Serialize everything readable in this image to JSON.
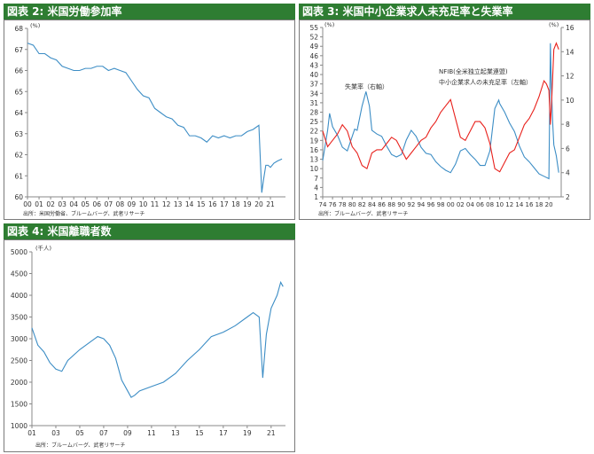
{
  "charts": [
    {
      "header": "図表 2: 米国労働参加率",
      "source": "出所：米国労働省、ブルームバーグ、武者リサーチ",
      "unit": "(%)",
      "color": "#3c8dc5",
      "chart_data": {
        "type": "line",
        "title": "米国労働参加率",
        "ylim": [
          60,
          68
        ],
        "yticks": [
          "60",
          "61",
          "62",
          "63",
          "64",
          "65",
          "66",
          "67",
          "68"
        ],
        "xlim": [
          2000,
          2022.3
        ],
        "xticks": [
          "00",
          "01",
          "02",
          "03",
          "04",
          "05",
          "06",
          "07",
          "08",
          "09",
          "10",
          "11",
          "12",
          "13",
          "14",
          "15",
          "16",
          "17",
          "18",
          "19",
          "20",
          "21"
        ],
        "series": [
          {
            "x": [
              2000,
              2000.5,
              2001,
              2001.5,
              2002,
              2002.5,
              2003,
              2003.5,
              2004,
              2004.5,
              2005,
              2005.5,
              2006,
              2006.5,
              2007,
              2007.5,
              2008,
              2008.5,
              2009,
              2009.5,
              2010,
              2010.5,
              2011,
              2011.5,
              2012,
              2012.5,
              2013,
              2013.5,
              2014,
              2014.5,
              2015,
              2015.5,
              2016,
              2016.5,
              2017,
              2017.5,
              2018,
              2018.5,
              2019,
              2019.5,
              2020,
              2020.25,
              2020.4,
              2020.6,
              2020.8,
              2021,
              2021.3,
              2021.6,
              2022
            ],
            "y": [
              67.3,
              67.2,
              66.8,
              66.8,
              66.6,
              66.5,
              66.2,
              66.1,
              66.0,
              66.0,
              66.1,
              66.1,
              66.2,
              66.2,
              66.0,
              66.1,
              66.0,
              65.9,
              65.5,
              65.1,
              64.8,
              64.7,
              64.2,
              64.0,
              63.8,
              63.7,
              63.4,
              63.3,
              62.9,
              62.9,
              62.8,
              62.6,
              62.9,
              62.8,
              62.9,
              62.8,
              62.9,
              62.9,
              63.1,
              63.2,
              63.4,
              60.2,
              60.8,
              61.5,
              61.5,
              61.4,
              61.6,
              61.7,
              61.8
            ]
          }
        ]
      }
    },
    {
      "header": "図表 3: 米国中小企業求人未充足率と失業率",
      "source": "出所：ブルームバーグ、武者リサーチ",
      "unit_left": "(%)",
      "unit_right": "(%)",
      "label_unemp": "失業率（右軸）",
      "label_nfib_1": "NFIB(全米独立起業連盟)",
      "label_nfib_2": "中小企業求人の未充足率（左軸）",
      "color_unemp": "#3c8dc5",
      "color_nfib": "#e8211c",
      "chart_data": {
        "type": "line",
        "title": "米国中小企業求人未充足率と失業率",
        "ylim_left": [
          1,
          55
        ],
        "yticks_left": [
          "1",
          "4",
          "7",
          "10",
          "13",
          "16",
          "19",
          "22",
          "25",
          "28",
          "31",
          "34",
          "37",
          "40",
          "43",
          "46",
          "49",
          "52",
          "55"
        ],
        "ylim_right": [
          2,
          16
        ],
        "yticks_right": [
          "2",
          "4",
          "6",
          "8",
          "10",
          "12",
          "14",
          "16"
        ],
        "xlim": [
          1974,
          2022.5
        ],
        "xticks": [
          "74",
          "76",
          "78",
          "80",
          "82",
          "84",
          "86",
          "88",
          "90",
          "92",
          "94",
          "96",
          "98",
          "00",
          "02",
          "04",
          "06",
          "08",
          "10",
          "12",
          "14",
          "16",
          "18",
          "20"
        ],
        "series": [
          {
            "name": "失業率（右軸）",
            "axis": "right",
            "x": [
              1974,
              1975,
              1975.4,
              1976,
              1977,
              1978,
              1979,
              1980,
              1980.5,
              1981,
              1982,
              1982.8,
              1983.5,
              1984,
              1985,
              1986,
              1987,
              1988,
              1989,
              1990,
              1991,
              1992,
              1993,
              1994,
              1995,
              1996,
              1997,
              1998,
              1999,
              2000,
              2001,
              2002,
              2003,
              2004,
              2005,
              2006,
              2007,
              2008,
              2009,
              2009.8,
              2010,
              2011,
              2012,
              2013,
              2014,
              2015,
              2016,
              2017,
              2018,
              2019,
              2020,
              2020.3,
              2020.5,
              2020.8,
              2021,
              2021.5,
              2022
            ],
            "y": [
              5.0,
              7.5,
              8.9,
              7.8,
              7.1,
              6.1,
              5.8,
              7.0,
              7.6,
              7.5,
              9.5,
              10.7,
              9.5,
              7.5,
              7.2,
              7.0,
              6.2,
              5.5,
              5.3,
              5.5,
              6.7,
              7.5,
              7.0,
              6.1,
              5.6,
              5.5,
              4.9,
              4.5,
              4.2,
              4.0,
              4.7,
              5.8,
              6.0,
              5.5,
              5.1,
              4.6,
              4.6,
              5.8,
              9.3,
              10.0,
              9.7,
              9.0,
              8.1,
              7.4,
              6.2,
              5.3,
              4.9,
              4.4,
              3.9,
              3.7,
              3.5,
              14.7,
              11.1,
              7.9,
              6.3,
              5.4,
              4.0
            ]
          },
          {
            "name": "NFIB 中小企業求人の未充足率（左軸）",
            "axis": "left",
            "x": [
              1974,
              1975,
              1976,
              1977,
              1978,
              1979,
              1980,
              1981,
              1982,
              1983,
              1984,
              1985,
              1986,
              1987,
              1988,
              1989,
              1990,
              1991,
              1992,
              1993,
              1994,
              1995,
              1996,
              1997,
              1998,
              1999,
              2000,
              2001,
              2002,
              2003,
              2004,
              2005,
              2006,
              2007,
              2008,
              2009,
              2010,
              2011,
              2012,
              2013,
              2014,
              2015,
              2016,
              2017,
              2018,
              2019,
              2019.5,
              2020,
              2020.3,
              2020.6,
              2021,
              2021.5,
              2022
            ],
            "y": [
              22,
              17,
              19,
              21,
              24,
              22,
              17,
              15,
              11,
              10,
              15,
              16,
              16,
              18,
              20,
              19,
              16,
              13,
              15,
              17,
              19,
              20,
              23,
              25,
              28,
              30,
              32,
              26,
              20,
              19,
              22,
              25,
              25,
              23,
              18,
              10,
              9,
              12,
              15,
              16,
              20,
              24,
              26,
              29,
              33,
              38,
              37,
              35,
              24,
              33,
              48,
              50,
              48
            ]
          }
        ]
      }
    },
    {
      "header": "図表 4: 米国離職者数",
      "source": "出所：ブルームバーグ、武者リサーチ",
      "unit": "(千人)",
      "color": "#3c8dc5",
      "chart_data": {
        "type": "line",
        "title": "米国離職者数",
        "ylim": [
          1000,
          5000
        ],
        "yticks": [
          "1000",
          "1500",
          "2000",
          "2500",
          "3000",
          "3500",
          "4000",
          "4500",
          "5000"
        ],
        "xlim": [
          2001,
          2022.2
        ],
        "xticks": [
          "01",
          "03",
          "05",
          "07",
          "09",
          "11",
          "13",
          "15",
          "17",
          "19",
          "21"
        ],
        "series": [
          {
            "x": [
              2001,
              2001.5,
              2002,
              2002.5,
              2003,
              2003.5,
              2004,
              2005,
              2006,
              2006.5,
              2007,
              2007.5,
              2008,
              2008.5,
              2009,
              2009.3,
              2009.6,
              2010,
              2011,
              2012,
              2013,
              2014,
              2015,
              2016,
              2017,
              2018,
              2019,
              2019.5,
              2020,
              2020.3,
              2020.6,
              2021,
              2021.5,
              2021.8,
              2022
            ],
            "y": [
              3250,
              2850,
              2700,
              2450,
              2300,
              2250,
              2500,
              2750,
              2950,
              3050,
              3000,
              2850,
              2550,
              2050,
              1800,
              1650,
              1700,
              1800,
              1900,
              2000,
              2200,
              2500,
              2750,
              3050,
              3150,
              3300,
              3500,
              3600,
              3500,
              2100,
              3100,
              3700,
              4000,
              4300,
              4200
            ]
          }
        ]
      }
    }
  ]
}
